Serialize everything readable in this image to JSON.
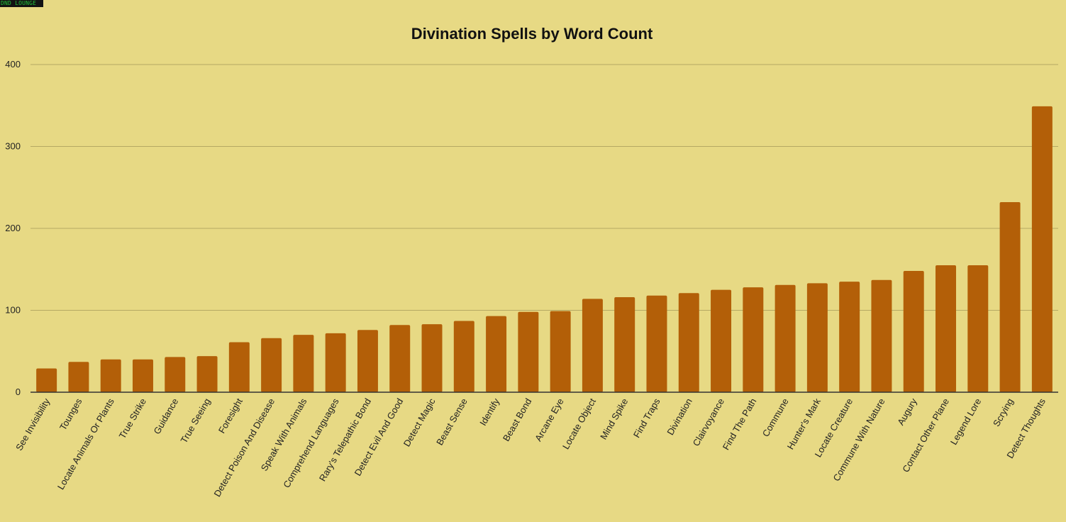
{
  "badge": {
    "text": "DND LOUNGE"
  },
  "colors": {
    "background": "#e7d984",
    "bar": "#b35f08",
    "grid": "#b5a964",
    "axis": "#333333"
  },
  "chart_data": {
    "type": "bar",
    "title": "Divination Spells by Word Count",
    "xlabel": "",
    "ylabel": "",
    "ylim": [
      0,
      400
    ],
    "yticks": [
      0,
      100,
      200,
      300,
      400
    ],
    "grid": true,
    "legend": "none",
    "categories": [
      "See Invisibility",
      "Tounges",
      "Locate Animals Or Plants",
      "True Strike",
      "Guidance",
      "True Seeing",
      "Foresight",
      "Detect Poison And Disease",
      "Speak With Animals",
      "Comprehend Languages",
      "Rary's Telepathic Bond",
      "Detect Evil And Good",
      "Detect Magic",
      "Beast Sense",
      "Identify",
      "Beast Bond",
      "Arcane Eye",
      "Locate Object",
      "Mind Spike",
      "Find Traps",
      "Divination",
      "Clairvoyance",
      "Find The Path",
      "Commune",
      "Hunter's Mark",
      "Locate Creature",
      "Commune With Nature",
      "Augury",
      "Contact Other Plane",
      "Legend Lore",
      "Scrying",
      "Detect Thoughts"
    ],
    "values": [
      29,
      37,
      40,
      40,
      43,
      44,
      61,
      66,
      70,
      72,
      76,
      82,
      83,
      87,
      93,
      98,
      99,
      114,
      116,
      118,
      121,
      125,
      128,
      131,
      133,
      135,
      137,
      148,
      155,
      155,
      232,
      349
    ]
  }
}
